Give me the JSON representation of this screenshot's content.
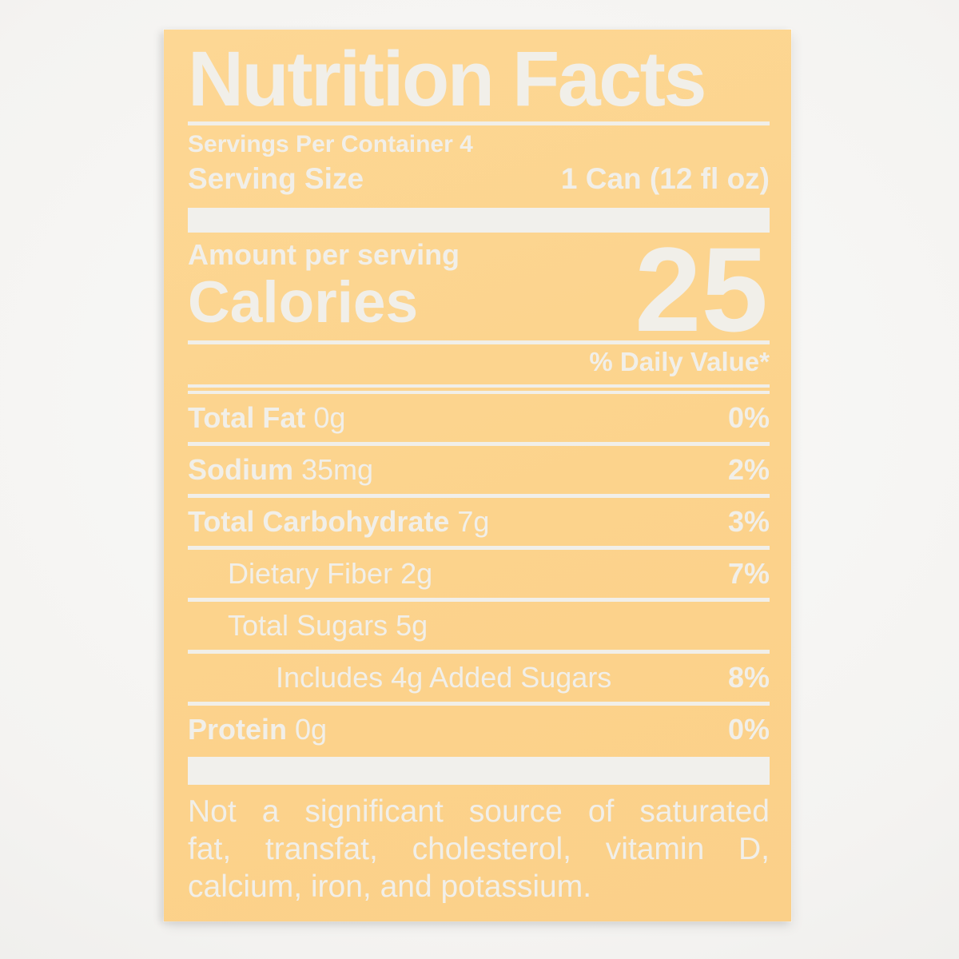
{
  "label": {
    "title": "Nutrition Facts",
    "servings_per_container": "Servings Per Container 4",
    "serving_size": {
      "label": "Serving Size",
      "value": "1 Can (12 fl oz)"
    },
    "amount_per_serving": "Amount per serving",
    "calories_label": "Calories",
    "calories_value": "25",
    "daily_value_header": "% Daily Value*",
    "nutrition_rows": [
      {
        "name": "Total Fat",
        "amount": "0g",
        "dv": "0%",
        "bold_name": true,
        "indent": 0
      },
      {
        "name": "Sodium",
        "amount": "35mg",
        "dv": "2%",
        "bold_name": true,
        "indent": 0
      },
      {
        "name": "Total Carbohydrate",
        "amount": "7g",
        "dv": "3%",
        "bold_name": true,
        "indent": 0
      },
      {
        "name": "Dietary Fiber",
        "amount": "2g",
        "dv": "7%",
        "bold_name": false,
        "indent": 1
      },
      {
        "name": "Total Sugars",
        "amount": "5g",
        "dv": "",
        "bold_name": false,
        "indent": 1
      },
      {
        "name": "Includes 4g Added Sugars",
        "amount": "",
        "dv": "8%",
        "bold_name": false,
        "indent": 2
      },
      {
        "name": "Protein",
        "amount": "0g",
        "dv": "0%",
        "bold_name": true,
        "indent": 0
      }
    ],
    "footnote_lines": [
      "Not a significant source of saturated",
      "fat, transfat, cholesterol, vitamin D,",
      "calcium, iron, and potassium."
    ],
    "colors": {
      "label_bg": "#fcd38c",
      "ink": "#f1efe9",
      "page_bg": "#f4f3f1"
    }
  }
}
